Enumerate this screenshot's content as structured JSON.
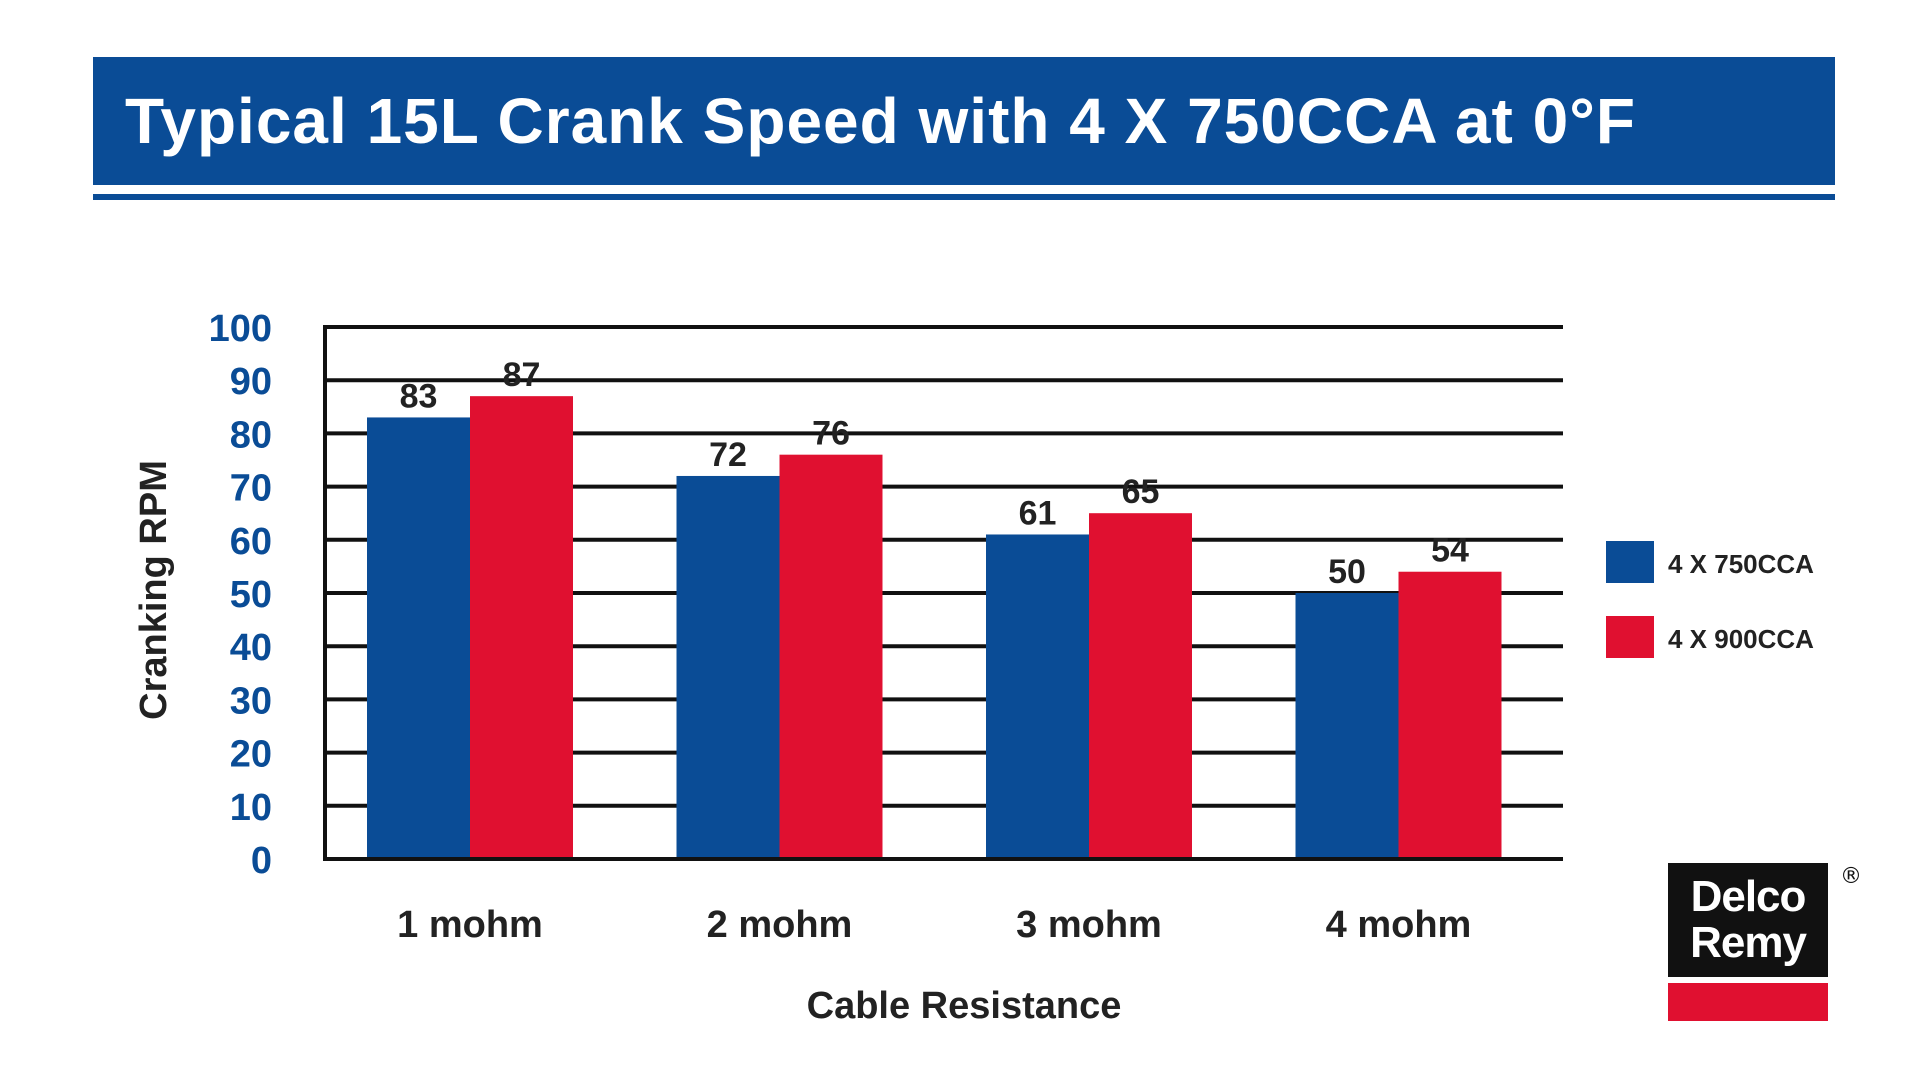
{
  "title": "Typical 15L Crank Speed with 4 X 750CCA at 0°F",
  "colors": {
    "brand_blue": "#0a4c96",
    "brand_red": "#e01030",
    "series_750": "#0a4c96",
    "series_900": "#e01030"
  },
  "chart_data": {
    "type": "bar",
    "title": "Typical 15L Crank Speed with 4 X 750CCA at 0°F",
    "xlabel": "Cable Resistance",
    "ylabel": "Cranking RPM",
    "categories": [
      "1 mohm",
      "2 mohm",
      "3 mohm",
      "4 mohm"
    ],
    "series": [
      {
        "name": "4 X 750CCA",
        "values": [
          83,
          72,
          61,
          50
        ],
        "color": "#0a4c96"
      },
      {
        "name": "4 X 900CCA",
        "values": [
          87,
          76,
          65,
          54
        ],
        "color": "#e01030"
      }
    ],
    "ylim": [
      0,
      100
    ],
    "yticks": [
      "0",
      "10",
      "20",
      "30",
      "40",
      "50",
      "60",
      "70",
      "80",
      "90",
      "100"
    ],
    "grid": true,
    "legend": "right",
    "data_labels": true
  },
  "logo": {
    "line1": "Delco",
    "line2": "Remy",
    "mark": "®"
  }
}
